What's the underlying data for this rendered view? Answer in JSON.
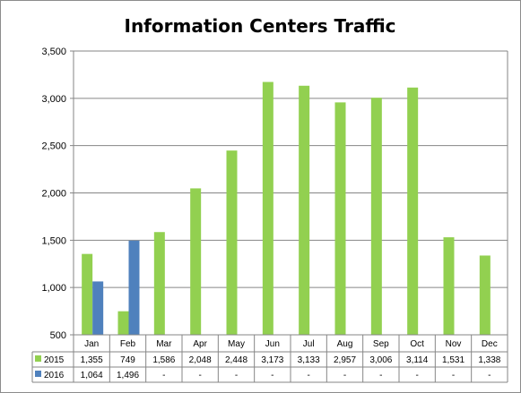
{
  "chart_data": {
    "type": "bar",
    "title": "Information Centers Traffic",
    "categories": [
      "Jan",
      "Feb",
      "Mar",
      "Apr",
      "May",
      "Jun",
      "Jul",
      "Aug",
      "Sep",
      "Oct",
      "Nov",
      "Dec"
    ],
    "series": [
      {
        "name": "2015",
        "color": "#92d050",
        "values": [
          1355,
          749,
          1586,
          2048,
          2448,
          3173,
          3133,
          2957,
          3006,
          3114,
          1531,
          1338
        ],
        "table_labels": [
          "1,355",
          "749",
          "1,586",
          "2,048",
          "2,448",
          "3,173",
          "3,133",
          "2,957",
          "3,006",
          "3,114",
          "1,531",
          "1,338"
        ]
      },
      {
        "name": "2016",
        "color": "#4f81bd",
        "values": [
          1064,
          1496,
          null,
          null,
          null,
          null,
          null,
          null,
          null,
          null,
          null,
          null
        ],
        "table_labels": [
          "1,064",
          "1,496",
          "-",
          "-",
          "-",
          "-",
          "-",
          "-",
          "-",
          "-",
          "-",
          "-"
        ]
      }
    ],
    "ylim": [
      500,
      3500
    ],
    "yticks": [
      500,
      1000,
      1500,
      2000,
      2500,
      3000,
      3500
    ],
    "ytick_labels": [
      "500",
      "1,000",
      "1,500",
      "2,000",
      "2,500",
      "3,000",
      "3,500"
    ],
    "grid": true,
    "legend": "data table below chart"
  }
}
